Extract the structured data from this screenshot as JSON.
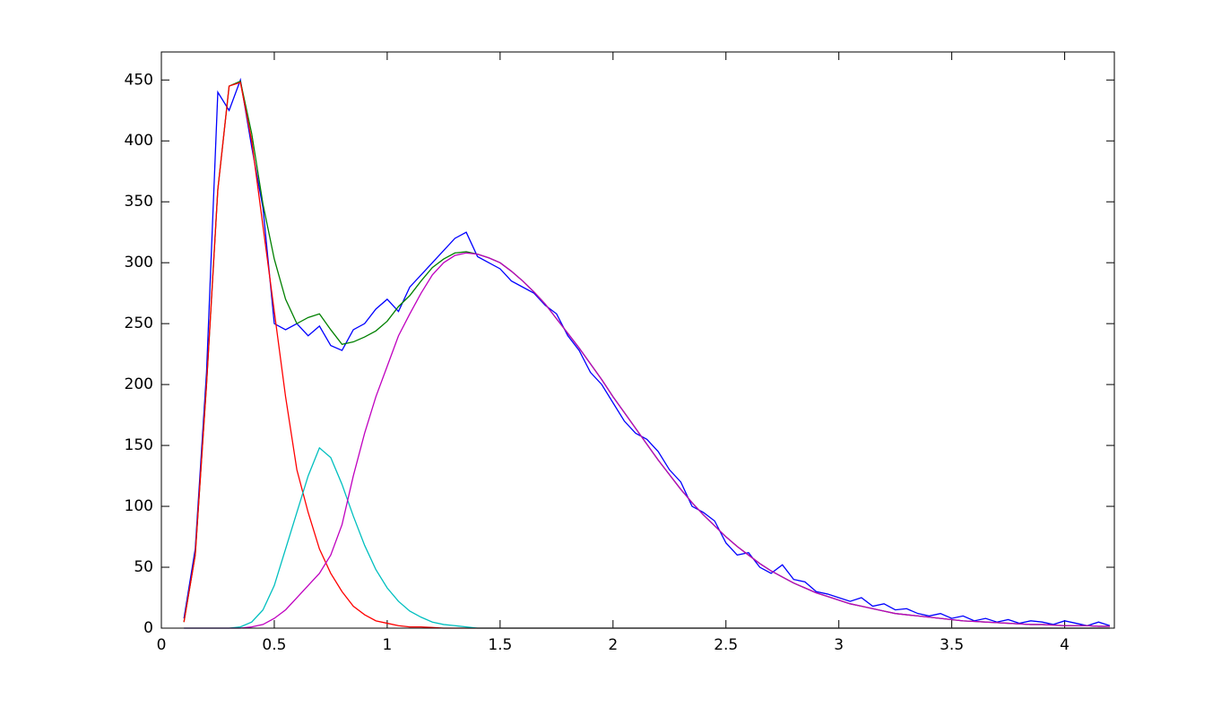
{
  "chart_data": {
    "type": "line",
    "x": [
      0.1,
      0.15,
      0.2,
      0.25,
      0.3,
      0.35,
      0.4,
      0.45,
      0.5,
      0.55,
      0.6,
      0.65,
      0.7,
      0.75,
      0.8,
      0.85,
      0.9,
      0.95,
      1.0,
      1.05,
      1.1,
      1.15,
      1.2,
      1.25,
      1.3,
      1.35,
      1.4,
      1.45,
      1.5,
      1.55,
      1.6,
      1.65,
      1.7,
      1.75,
      1.8,
      1.85,
      1.9,
      1.95,
      2.0,
      2.05,
      2.1,
      2.15,
      2.2,
      2.25,
      2.3,
      2.35,
      2.4,
      2.45,
      2.5,
      2.55,
      2.6,
      2.65,
      2.7,
      2.75,
      2.8,
      2.85,
      2.9,
      2.95,
      3.0,
      3.05,
      3.1,
      3.15,
      3.2,
      3.25,
      3.3,
      3.35,
      3.4,
      3.45,
      3.5,
      3.55,
      3.6,
      3.65,
      3.7,
      3.75,
      3.8,
      3.85,
      3.9,
      3.95,
      4.0,
      4.05,
      4.1,
      4.15,
      4.2
    ],
    "series": [
      {
        "color": "#0000ff",
        "values": [
          8,
          65,
          210,
          440,
          425,
          450,
          395,
          345,
          250,
          245,
          250,
          240,
          248,
          232,
          228,
          245,
          250,
          262,
          270,
          260,
          280,
          290,
          300,
          310,
          320,
          325,
          305,
          300,
          295,
          285,
          280,
          275,
          265,
          258,
          240,
          228,
          210,
          200,
          185,
          170,
          160,
          155,
          145,
          130,
          120,
          100,
          95,
          88,
          70,
          60,
          62,
          50,
          45,
          52,
          40,
          38,
          30,
          28,
          25,
          22,
          25,
          18,
          20,
          15,
          16,
          12,
          10,
          12,
          8,
          10,
          6,
          8,
          5,
          7,
          4,
          6,
          5,
          3,
          6,
          4,
          2,
          5,
          2
        ]
      },
      {
        "color": "#008000",
        "values": [
          5,
          60,
          200,
          360,
          445,
          449,
          406,
          348,
          303,
          270,
          250,
          255,
          258,
          245,
          233,
          235,
          239,
          244,
          252,
          264,
          273,
          285,
          296,
          303,
          308,
          309,
          307,
          304,
          300,
          293,
          285,
          276,
          266,
          254,
          242,
          230,
          217,
          204,
          190,
          177,
          164,
          151,
          138,
          126,
          114,
          103,
          93,
          84,
          75,
          67,
          60,
          53,
          47,
          42,
          37,
          33,
          29,
          26,
          23,
          20,
          18,
          16,
          14,
          12,
          11,
          10,
          9,
          8,
          7,
          6,
          5.5,
          5,
          4.5,
          4,
          3.5,
          3,
          3,
          2.5,
          2,
          2,
          2,
          1.5,
          1.5
        ]
      },
      {
        "color": "#ff0000",
        "values": [
          5,
          60,
          200,
          360,
          445,
          448,
          400,
          330,
          260,
          190,
          130,
          95,
          65,
          45,
          30,
          18,
          11,
          6,
          4,
          2,
          1,
          1,
          0.5,
          0,
          0,
          0,
          0,
          0,
          0,
          0,
          0,
          0,
          0,
          0,
          0,
          0,
          0,
          0,
          0,
          0,
          0,
          0,
          0,
          0,
          0,
          0,
          0,
          0,
          0,
          0,
          0,
          0,
          0,
          0,
          0,
          0,
          0,
          0,
          0,
          0,
          0,
          0,
          0,
          0,
          0,
          0,
          0,
          0,
          0,
          0,
          0,
          0,
          0,
          0,
          0,
          0,
          0,
          0,
          0,
          0,
          0,
          0,
          0
        ]
      },
      {
        "color": "#00bfbf",
        "values": [
          0,
          0,
          0,
          0,
          0,
          1,
          5,
          15,
          35,
          65,
          95,
          125,
          148,
          140,
          118,
          92,
          68,
          48,
          33,
          22,
          14,
          9,
          5,
          3,
          2,
          1,
          0,
          0,
          0,
          0,
          0,
          0,
          0,
          0,
          0,
          0,
          0,
          0,
          0,
          0,
          0,
          0,
          0,
          0,
          0,
          0,
          0,
          0,
          0,
          0,
          0,
          0,
          0,
          0,
          0,
          0,
          0,
          0,
          0,
          0,
          0,
          0,
          0,
          0,
          0,
          0,
          0,
          0,
          0,
          0,
          0,
          0,
          0,
          0,
          0,
          0,
          0,
          0,
          0,
          0,
          0,
          0,
          0
        ]
      },
      {
        "color": "#bf00bf",
        "values": [
          0,
          0,
          0,
          0,
          0,
          0,
          1,
          3,
          8,
          15,
          25,
          35,
          45,
          60,
          85,
          125,
          160,
          190,
          215,
          240,
          258,
          275,
          290,
          300,
          306,
          308,
          307,
          304,
          300,
          293,
          285,
          276,
          266,
          254,
          242,
          230,
          217,
          204,
          190,
          177,
          164,
          151,
          138,
          126,
          114,
          103,
          93,
          84,
          75,
          67,
          60,
          53,
          47,
          42,
          37,
          33,
          29,
          26,
          23,
          20,
          18,
          16,
          14,
          12,
          11,
          10,
          9,
          8,
          7,
          6,
          5.5,
          5,
          4.5,
          4,
          3.5,
          3,
          3,
          2.5,
          2,
          2,
          2,
          1.5,
          1.5
        ]
      }
    ],
    "xlim": [
      0,
      4.22
    ],
    "ylim": [
      0,
      473
    ],
    "xticks": [
      0,
      0.5,
      1,
      1.5,
      2,
      2.5,
      3,
      3.5,
      4
    ],
    "yticks": [
      0,
      50,
      100,
      150,
      200,
      250,
      300,
      350,
      400,
      450
    ],
    "grid": false
  }
}
